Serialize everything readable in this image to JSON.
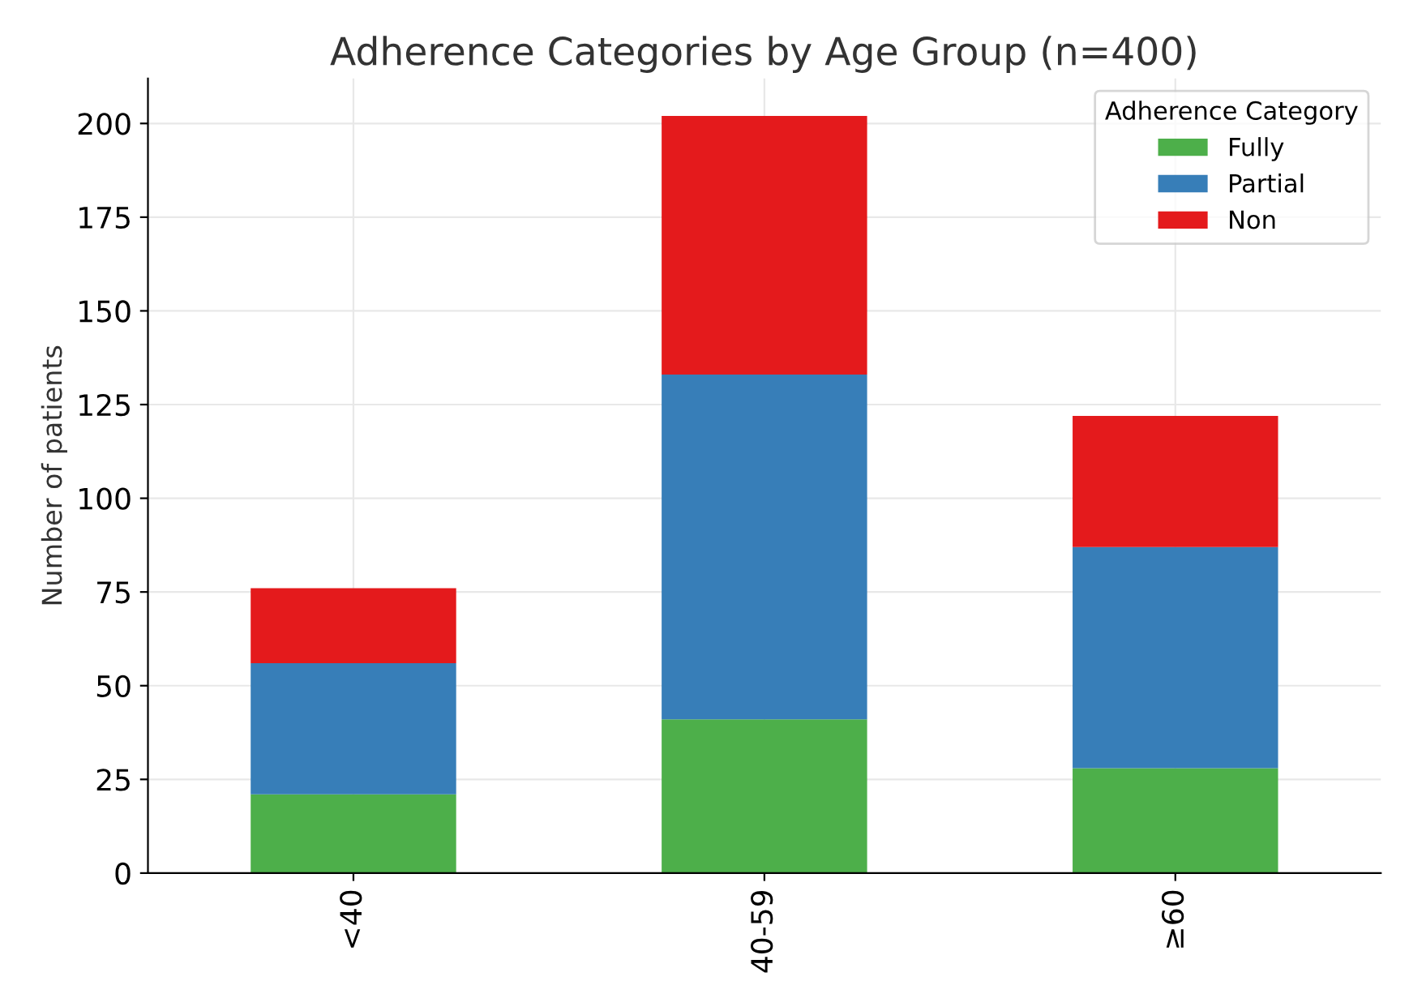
{
  "chart_data": {
    "type": "bar",
    "title": "Adherence Categories by Age Group (n=400)",
    "ylabel": "Number of patients",
    "legend_title": "Adherence Category",
    "categories": [
      "<40",
      "40-59",
      "≥60"
    ],
    "stacked": true,
    "series": [
      {
        "name": "Fully",
        "color": "#4daf4a",
        "values": [
          21,
          41,
          28
        ]
      },
      {
        "name": "Partial",
        "color": "#377eb8",
        "values": [
          35,
          92,
          59
        ]
      },
      {
        "name": "Non",
        "color": "#e41a1c",
        "values": [
          20,
          69,
          35
        ]
      }
    ],
    "ylim": [
      0,
      212
    ],
    "yticks": [
      0,
      25,
      50,
      75,
      100,
      125,
      150,
      175,
      200
    ],
    "grid": true,
    "legend": "top right"
  }
}
